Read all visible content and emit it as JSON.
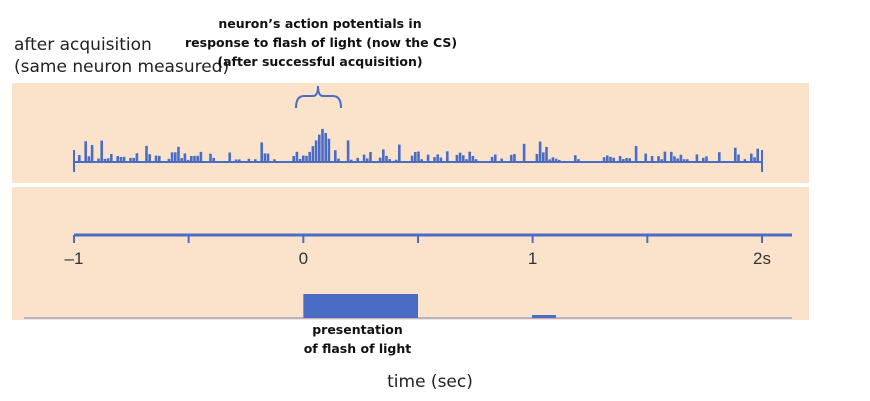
{
  "left_caption": {
    "line1": "after acquisition",
    "line2": "(same neuron measured)"
  },
  "top_caption": {
    "line1": "neuron’s action potentials in",
    "line2": "response to flash of light (now the CS)",
    "line3": "(after successful acquisition)"
  },
  "stimulus_caption": {
    "line1": "presentation",
    "line2": "of flash of light"
  },
  "time_axis": {
    "title": "time (sec)",
    "min": -1,
    "max": 2,
    "ticks": [
      -1,
      -0.5,
      0,
      0.5,
      1,
      1.5,
      2
    ],
    "tick_labels": [
      {
        "value": -1,
        "label": "–1"
      },
      {
        "value": 0,
        "label": "0"
      },
      {
        "value": 1,
        "label": "1"
      },
      {
        "value": 2,
        "label": "2s"
      }
    ]
  },
  "stimulus": {
    "start": 0,
    "end": 0.5
  },
  "colors": {
    "panel": "#fbe3cb",
    "blue": "#4a6cc4",
    "baseline": "#9aa6c8"
  }
}
